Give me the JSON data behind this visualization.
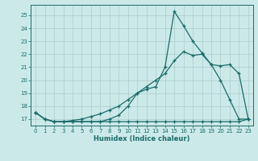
{
  "xlabel": "Humidex (Indice chaleur)",
  "bg_color": "#cce9e9",
  "grid_color": "#aacccc",
  "line_color": "#1a6b6b",
  "xlim": [
    -0.5,
    23.5
  ],
  "ylim": [
    16.5,
    25.8
  ],
  "xticks": [
    0,
    1,
    2,
    3,
    4,
    5,
    6,
    7,
    8,
    9,
    10,
    11,
    12,
    13,
    14,
    15,
    16,
    17,
    18,
    19,
    20,
    21,
    22,
    23
  ],
  "yticks": [
    17,
    18,
    19,
    20,
    21,
    22,
    23,
    24,
    25
  ],
  "line1_x": [
    0,
    1,
    2,
    3,
    4,
    5,
    6,
    7,
    8,
    9,
    10,
    11,
    12,
    13,
    14,
    15,
    16,
    17,
    18,
    19,
    20,
    21,
    22,
    23
  ],
  "line1_y": [
    17.5,
    17.0,
    16.8,
    16.8,
    16.8,
    16.8,
    16.8,
    16.8,
    16.8,
    16.8,
    16.8,
    16.8,
    16.8,
    16.8,
    16.8,
    16.8,
    16.8,
    16.8,
    16.8,
    16.8,
    16.8,
    16.8,
    16.8,
    17.0
  ],
  "line2_x": [
    0,
    1,
    2,
    3,
    4,
    5,
    6,
    7,
    8,
    9,
    10,
    11,
    12,
    13,
    14,
    15,
    16,
    17,
    18,
    19,
    20,
    21,
    22,
    23
  ],
  "line2_y": [
    17.5,
    17.0,
    16.8,
    16.8,
    16.8,
    16.8,
    16.8,
    16.8,
    17.0,
    17.3,
    18.0,
    19.0,
    19.3,
    19.5,
    21.0,
    25.3,
    24.2,
    23.0,
    22.1,
    21.2,
    20.0,
    18.5,
    17.0,
    17.0
  ],
  "line3_x": [
    0,
    1,
    2,
    3,
    4,
    5,
    6,
    7,
    8,
    9,
    10,
    11,
    12,
    13,
    14,
    15,
    16,
    17,
    18,
    19,
    20,
    21,
    22,
    23
  ],
  "line3_y": [
    17.5,
    17.0,
    16.8,
    16.8,
    16.9,
    17.0,
    17.2,
    17.4,
    17.7,
    18.0,
    18.5,
    19.0,
    19.5,
    20.0,
    20.5,
    21.5,
    22.2,
    21.9,
    22.0,
    21.2,
    21.1,
    21.2,
    20.5,
    17.0
  ]
}
